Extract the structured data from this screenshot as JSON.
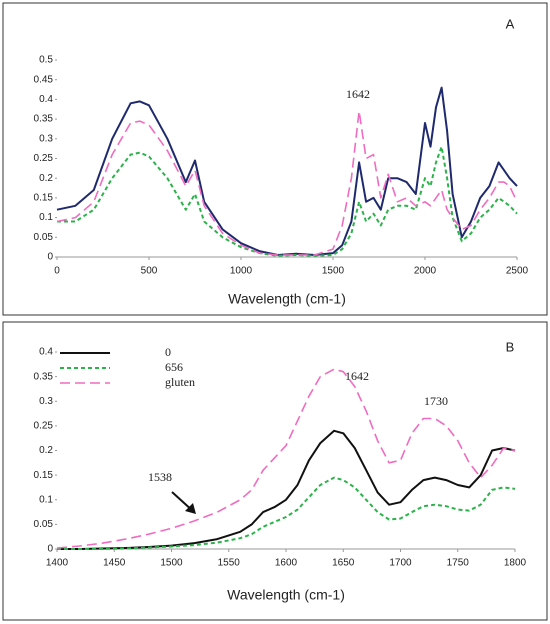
{
  "chart_data": [
    {
      "type": "line",
      "panel": "A",
      "xlabel": "Wavelength (cm-1)",
      "annotations": [
        "1642"
      ],
      "xlim": [
        0,
        2500
      ],
      "xticks": [
        0,
        500,
        1000,
        1500,
        2000,
        2500
      ],
      "ylim": [
        0,
        0.5
      ],
      "yticks": [
        0,
        0.05,
        0.1,
        0.15,
        0.2,
        0.25,
        0.3,
        0.35,
        0.4,
        0.45,
        0.5
      ],
      "x": [
        0,
        100,
        200,
        300,
        400,
        450,
        500,
        600,
        700,
        750,
        800,
        900,
        1000,
        1100,
        1200,
        1300,
        1400,
        1500,
        1550,
        1600,
        1642,
        1680,
        1720,
        1760,
        1800,
        1850,
        1900,
        1950,
        2000,
        2030,
        2060,
        2090,
        2120,
        2150,
        2200,
        2250,
        2300,
        2350,
        2400,
        2430,
        2460,
        2500
      ],
      "series": [
        {
          "color": "#1f2a6e",
          "style": "solid",
          "values": [
            0.12,
            0.13,
            0.17,
            0.3,
            0.39,
            0.395,
            0.385,
            0.3,
            0.19,
            0.245,
            0.14,
            0.07,
            0.035,
            0.015,
            0.005,
            0.008,
            0.005,
            0.01,
            0.03,
            0.09,
            0.24,
            0.14,
            0.15,
            0.12,
            0.2,
            0.2,
            0.19,
            0.16,
            0.34,
            0.28,
            0.38,
            0.43,
            0.32,
            0.16,
            0.05,
            0.09,
            0.15,
            0.18,
            0.24,
            0.22,
            0.2,
            0.18
          ]
        },
        {
          "color": "#2bb34a",
          "style": "dashed",
          "values": [
            0.09,
            0.09,
            0.12,
            0.2,
            0.26,
            0.265,
            0.255,
            0.2,
            0.12,
            0.16,
            0.09,
            0.05,
            0.025,
            0.01,
            0.003,
            0.005,
            0.003,
            0.005,
            0.02,
            0.06,
            0.14,
            0.09,
            0.11,
            0.08,
            0.12,
            0.13,
            0.13,
            0.12,
            0.2,
            0.18,
            0.24,
            0.28,
            0.2,
            0.1,
            0.04,
            0.06,
            0.1,
            0.12,
            0.15,
            0.14,
            0.13,
            0.11
          ]
        },
        {
          "color": "#f06cc0",
          "style": "longdash",
          "values": [
            0.09,
            0.1,
            0.14,
            0.26,
            0.34,
            0.345,
            0.335,
            0.27,
            0.18,
            0.22,
            0.13,
            0.06,
            0.03,
            0.01,
            0.005,
            0.005,
            0.005,
            0.02,
            0.08,
            0.2,
            0.37,
            0.25,
            0.26,
            0.15,
            0.21,
            0.14,
            0.15,
            0.13,
            0.14,
            0.13,
            0.15,
            0.17,
            0.12,
            0.1,
            0.07,
            0.08,
            0.12,
            0.15,
            0.19,
            0.19,
            0.18,
            0.14
          ]
        }
      ]
    },
    {
      "type": "line",
      "panel": "B",
      "xlabel": "Wavelength (cm-1)",
      "annotations": [
        "1642",
        "1730",
        "1538"
      ],
      "xlim": [
        1400,
        1800
      ],
      "xticks": [
        1400,
        1450,
        1500,
        1550,
        1600,
        1650,
        1700,
        1750,
        1800
      ],
      "ylim": [
        0,
        0.4
      ],
      "yticks": [
        0,
        0.05,
        0.1,
        0.15,
        0.2,
        0.25,
        0.3,
        0.35,
        0.4
      ],
      "legend": "top-left",
      "x": [
        1400,
        1420,
        1440,
        1460,
        1480,
        1500,
        1520,
        1540,
        1560,
        1570,
        1580,
        1590,
        1600,
        1610,
        1620,
        1630,
        1642,
        1650,
        1660,
        1670,
        1680,
        1690,
        1700,
        1710,
        1720,
        1730,
        1740,
        1750,
        1760,
        1770,
        1780,
        1790,
        1800
      ],
      "series": [
        {
          "name": "0",
          "color": "#111111",
          "style": "solid",
          "values": [
            0,
            0,
            0.001,
            0.002,
            0.004,
            0.007,
            0.012,
            0.02,
            0.035,
            0.05,
            0.075,
            0.085,
            0.1,
            0.13,
            0.18,
            0.215,
            0.24,
            0.235,
            0.205,
            0.16,
            0.115,
            0.09,
            0.095,
            0.12,
            0.14,
            0.145,
            0.14,
            0.13,
            0.125,
            0.15,
            0.2,
            0.205,
            0.2
          ]
        },
        {
          "name": "656",
          "color": "#2bb34a",
          "style": "dashed",
          "values": [
            0,
            0,
            0,
            0.001,
            0.003,
            0.005,
            0.008,
            0.013,
            0.022,
            0.03,
            0.045,
            0.055,
            0.065,
            0.08,
            0.105,
            0.13,
            0.145,
            0.14,
            0.125,
            0.1,
            0.075,
            0.06,
            0.062,
            0.075,
            0.087,
            0.09,
            0.087,
            0.08,
            0.078,
            0.09,
            0.12,
            0.125,
            0.122
          ]
        },
        {
          "name": "gluten",
          "color": "#f06cc0",
          "style": "longdash",
          "values": [
            0.002,
            0.006,
            0.012,
            0.02,
            0.03,
            0.042,
            0.057,
            0.075,
            0.1,
            0.12,
            0.16,
            0.185,
            0.21,
            0.26,
            0.31,
            0.35,
            0.365,
            0.36,
            0.33,
            0.28,
            0.22,
            0.175,
            0.18,
            0.235,
            0.265,
            0.265,
            0.25,
            0.22,
            0.175,
            0.145,
            0.17,
            0.205,
            0.2
          ]
        }
      ]
    }
  ]
}
